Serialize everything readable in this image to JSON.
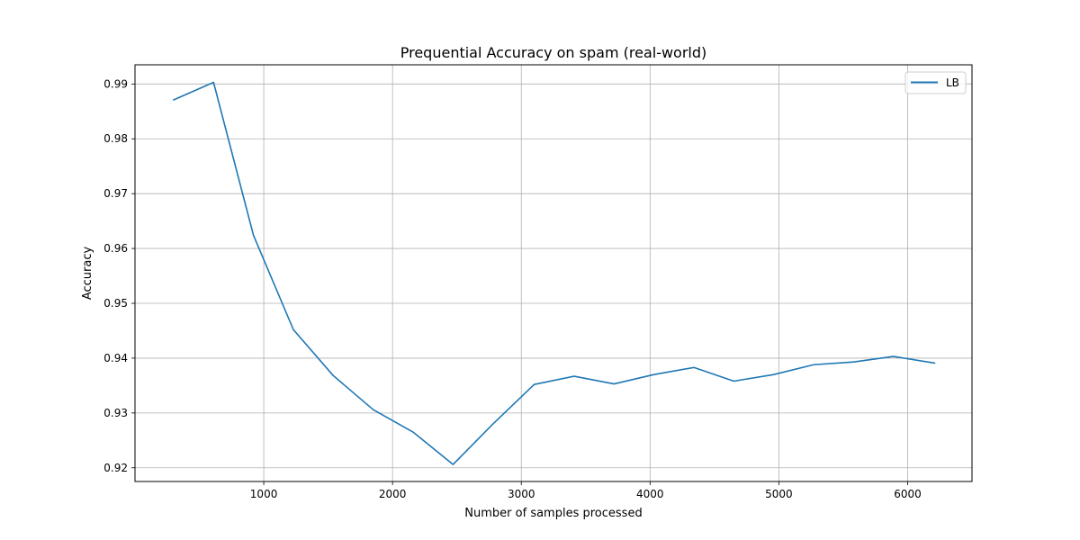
{
  "chart_data": {
    "type": "line",
    "title": "Prequential Accuracy on spam (real-world)",
    "xlabel": "Number of samples processed",
    "ylabel": "Accuracy",
    "xlim": [
      0,
      6500
    ],
    "ylim": [
      0.9175,
      0.9935
    ],
    "xticks": [
      1000,
      2000,
      3000,
      4000,
      5000,
      6000
    ],
    "yticks": [
      0.92,
      0.93,
      0.94,
      0.95,
      0.96,
      0.97,
      0.98,
      0.99
    ],
    "xtick_labels": [
      "1000",
      "2000",
      "3000",
      "4000",
      "5000",
      "6000"
    ],
    "ytick_labels": [
      "0.92",
      "0.93",
      "0.94",
      "0.95",
      "0.96",
      "0.97",
      "0.98",
      "0.99"
    ],
    "grid": true,
    "legend_position": "top-right",
    "series": [
      {
        "name": "LB",
        "color": "#1f77b4",
        "x": [
          300,
          610,
          920,
          1230,
          1540,
          1850,
          2160,
          2470,
          2780,
          3100,
          3410,
          3720,
          4030,
          4340,
          4650,
          4960,
          5270,
          5580,
          5890,
          6210
        ],
        "y": [
          0.9871,
          0.9903,
          0.9624,
          0.9452,
          0.9368,
          0.9306,
          0.9265,
          0.9206,
          0.928,
          0.9352,
          0.9367,
          0.9353,
          0.937,
          0.9383,
          0.9358,
          0.937,
          0.9388,
          0.9393,
          0.9403,
          0.9391
        ]
      }
    ]
  }
}
